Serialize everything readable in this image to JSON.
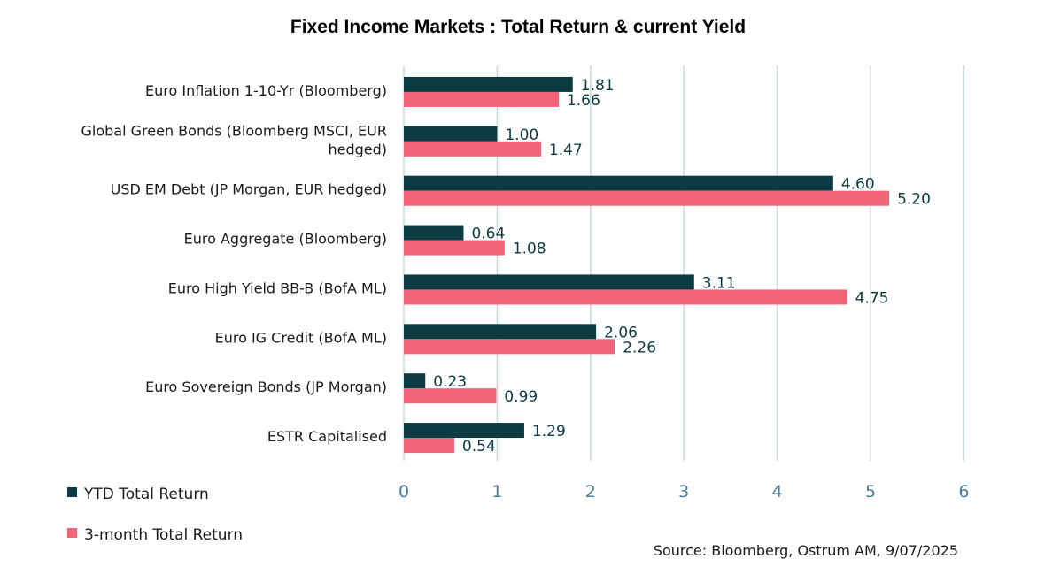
{
  "chart_data": {
    "type": "bar",
    "orientation": "horizontal",
    "title": "Fixed Income Markets : Total Return & current Yield",
    "categories": [
      [
        "Euro Inflation 1-10-Yr (Bloomberg)"
      ],
      [
        "Global Green Bonds (Bloomberg MSCI, EUR",
        "hedged)"
      ],
      [
        "USD EM Debt (JP Morgan, EUR hedged)"
      ],
      [
        "Euro Aggregate (Bloomberg)"
      ],
      [
        "Euro High Yield BB-B (BofA ML)"
      ],
      [
        "Euro IG Credit (BofA ML)"
      ],
      [
        "Euro Sovereign Bonds (JP Morgan)"
      ],
      [
        "ESTR Capitalised"
      ]
    ],
    "series": [
      {
        "name": "YTD Total Return",
        "color": "#0d3b44",
        "values": [
          1.81,
          1.0,
          4.6,
          0.64,
          3.11,
          2.06,
          0.23,
          1.29
        ],
        "labels": [
          "1.81",
          "1.00",
          "4.60",
          "0.64",
          "3.11",
          "2.06",
          "0.23",
          "1.29"
        ]
      },
      {
        "name": "3-month Total Return",
        "color": "#f06478",
        "values": [
          1.66,
          1.47,
          5.2,
          1.08,
          4.75,
          2.26,
          0.99,
          0.54
        ],
        "labels": [
          "1.66",
          "1.47",
          "5.20",
          "1.08",
          "4.75",
          "2.26",
          "0.99",
          "0.54"
        ]
      }
    ],
    "xlim": [
      0,
      6
    ],
    "xticks": [
      "0",
      "1",
      "2",
      "3",
      "4",
      "5",
      "6"
    ],
    "grid": true,
    "legend_position": "bottom-left",
    "source": "Source: Bloomberg, Ostrum AM, 9/07/2025"
  },
  "colors": {
    "gridline": "#c9d8e0",
    "tick_text": "#4a7c96"
  }
}
